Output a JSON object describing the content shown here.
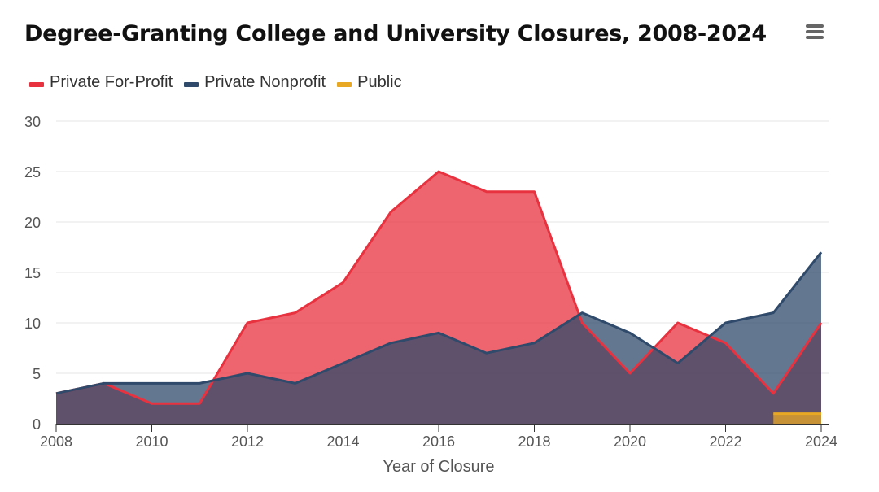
{
  "chart_data": {
    "type": "area",
    "title": "Degree-Granting College and University Closures, 2008-2024",
    "xlabel": "Year of Closure",
    "ylabel": "",
    "x": [
      2008,
      2009,
      2010,
      2011,
      2012,
      2013,
      2014,
      2015,
      2016,
      2017,
      2018,
      2019,
      2020,
      2021,
      2022,
      2023,
      2024
    ],
    "xlim": [
      2008,
      2024
    ],
    "ylim": [
      0,
      30
    ],
    "xticks": [
      "2008",
      "2010",
      "2012",
      "2014",
      "2016",
      "2018",
      "2020",
      "2022",
      "2024"
    ],
    "yticks": [
      "0",
      "5",
      "10",
      "15",
      "20",
      "25",
      "30"
    ],
    "grid": "horizontal",
    "legend_position": "top-left",
    "series": [
      {
        "name": "Private For-Profit",
        "color": "#e8323f",
        "x": [
          2008,
          2009,
          2010,
          2011,
          2012,
          2013,
          2014,
          2015,
          2016,
          2017,
          2018,
          2019,
          2020,
          2021,
          2022,
          2023,
          2024
        ],
        "values": [
          3,
          4,
          2,
          2,
          10,
          11,
          14,
          21,
          25,
          23,
          23,
          10,
          5,
          10,
          8,
          3,
          10
        ]
      },
      {
        "name": "Private Nonprofit",
        "color": "#2f4a6b",
        "x": [
          2008,
          2009,
          2010,
          2011,
          2012,
          2013,
          2014,
          2015,
          2016,
          2017,
          2018,
          2019,
          2020,
          2021,
          2022,
          2023,
          2024
        ],
        "values": [
          3,
          4,
          4,
          4,
          5,
          4,
          6,
          8,
          9,
          7,
          8,
          11,
          9,
          6,
          10,
          11,
          17
        ]
      },
      {
        "name": "Public",
        "color": "#e8a823",
        "x": [
          2023,
          2024
        ],
        "values": [
          1,
          1
        ]
      }
    ]
  },
  "menu": {
    "icon": "hamburger-menu-icon"
  }
}
